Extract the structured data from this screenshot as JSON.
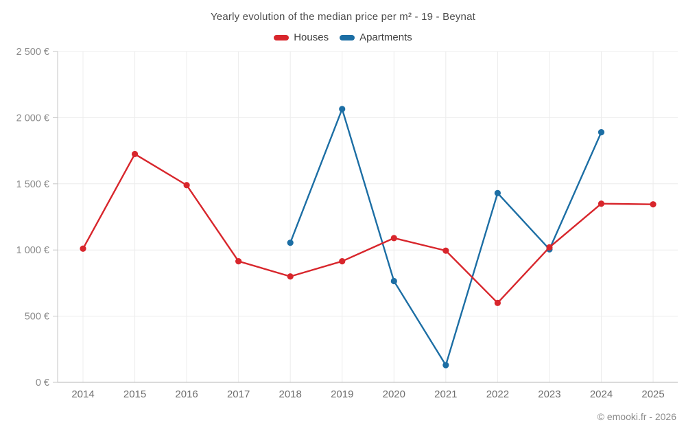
{
  "chart_data": {
    "type": "line",
    "title": "Yearly evolution of the median price per m² - 19 - Beynat",
    "categories": [
      "2014",
      "2015",
      "2016",
      "2017",
      "2018",
      "2019",
      "2020",
      "2021",
      "2022",
      "2023",
      "2024",
      "2025"
    ],
    "series": [
      {
        "name": "Houses",
        "color": "#d8262c",
        "values": [
          1010,
          1725,
          1490,
          915,
          800,
          915,
          1090,
          995,
          600,
          1020,
          1350,
          1345
        ]
      },
      {
        "name": "Apartments",
        "color": "#1c6ea4",
        "values": [
          null,
          null,
          null,
          null,
          1055,
          2065,
          765,
          130,
          1430,
          1005,
          1890,
          null
        ]
      }
    ],
    "ylim": [
      0,
      2500
    ],
    "y_tick_step": 500,
    "y_tick_labels": [
      "0 €",
      "500 €",
      "1 000 €",
      "1 500 €",
      "2 000 €",
      "2 500 €"
    ],
    "grid": true,
    "legend_position": "top",
    "xlabel": "",
    "ylabel": ""
  },
  "footer": {
    "copyright": "© emooki.fr - 2026"
  },
  "colors": {
    "grid": "#ececec",
    "axis_y": "#c6c6c6",
    "axis_x": "#b5b5b5",
    "y_tick_label": "#8a8a8a",
    "x_tick_label": "#6f6f6f",
    "title": "#4c4c4c"
  }
}
